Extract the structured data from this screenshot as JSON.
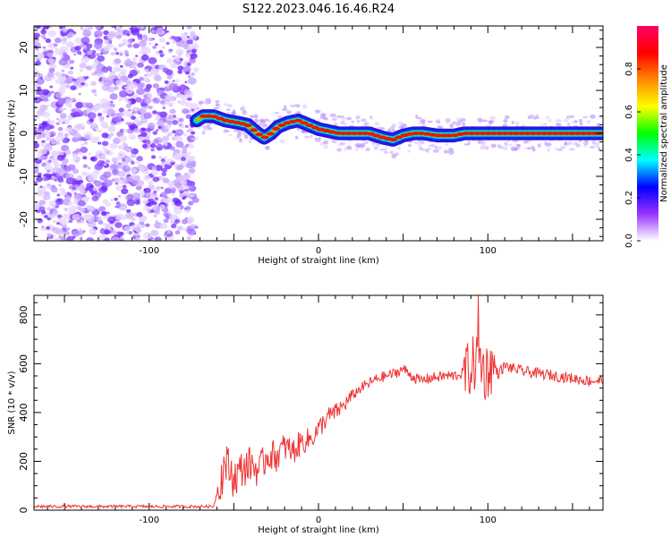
{
  "title": "S122.2023.046.16.46.R24",
  "chart_data": [
    {
      "type": "heatmap",
      "xlabel": "Height of straight line (km)",
      "ylabel": "Frequency (Hz)",
      "xlim": [
        -168,
        168
      ],
      "ylim": [
        -25,
        25
      ],
      "x_ticks": [
        -100,
        0,
        100
      ],
      "y_ticks": [
        -20,
        -10,
        0,
        10,
        20
      ],
      "grid": false,
      "colorbar": {
        "label": "Normalized spectral amplitude",
        "range": [
          0,
          1
        ],
        "ticks": [
          0.0,
          0.2,
          0.4,
          0.6,
          0.8
        ],
        "tick_labels": [
          "0.0",
          "0.2",
          "0.4",
          "0.6",
          "0.8"
        ],
        "colors": [
          "#ffffff",
          "#9933ff",
          "#0000ff",
          "#00ffff",
          "#00ff00",
          "#ffff00",
          "#ff8800",
          "#ff0000",
          "#ff0066"
        ]
      },
      "noise_region_x": [
        -168,
        -72
      ],
      "ridge": {
        "x": [
          -72,
          -68,
          -62,
          -55,
          -48,
          -42,
          -36,
          -32,
          -28,
          -24,
          -18,
          -12,
          -6,
          0,
          6,
          12,
          20,
          30,
          38,
          44,
          50,
          56,
          62,
          70,
          80,
          86,
          96,
          110,
          125,
          140,
          155,
          168
        ],
        "freq": [
          3,
          4,
          4,
          3,
          2.5,
          2,
          0,
          -1,
          0,
          1.5,
          2.5,
          3,
          2,
          1,
          0.5,
          0,
          0,
          0,
          -1,
          -1.5,
          -0.5,
          0,
          0,
          -0.5,
          -0.5,
          0,
          0,
          0,
          0,
          0,
          0,
          0
        ]
      }
    },
    {
      "type": "line",
      "xlabel": "Height of straight line (km)",
      "ylabel": "SNR (10 * v/v)",
      "xlim": [
        -168,
        168
      ],
      "ylim": [
        0,
        880
      ],
      "x_ticks": [
        -100,
        0,
        100
      ],
      "y_ticks": [
        0,
        200,
        400,
        600,
        800
      ],
      "grid": false,
      "series": [
        {
          "color": "#ee3333",
          "x": [
            -168,
            -150,
            -120,
            -90,
            -62,
            -58,
            -55,
            -50,
            -45,
            -40,
            -35,
            -30,
            -25,
            -20,
            -15,
            -10,
            -5,
            0,
            5,
            10,
            15,
            20,
            25,
            30,
            35,
            40,
            45,
            50,
            55,
            60,
            65,
            70,
            75,
            80,
            85,
            88,
            92,
            95,
            98,
            102,
            106,
            110,
            120,
            130,
            140,
            150,
            160,
            168
          ],
          "values": [
            15,
            15,
            15,
            15,
            15,
            120,
            200,
            130,
            170,
            190,
            160,
            230,
            220,
            260,
            240,
            280,
            290,
            330,
            380,
            400,
            430,
            470,
            500,
            520,
            540,
            550,
            560,
            580,
            550,
            530,
            540,
            545,
            550,
            550,
            560,
            570,
            600,
            640,
            560,
            590,
            560,
            590,
            570,
            560,
            550,
            540,
            530,
            530
          ]
        }
      ]
    }
  ]
}
